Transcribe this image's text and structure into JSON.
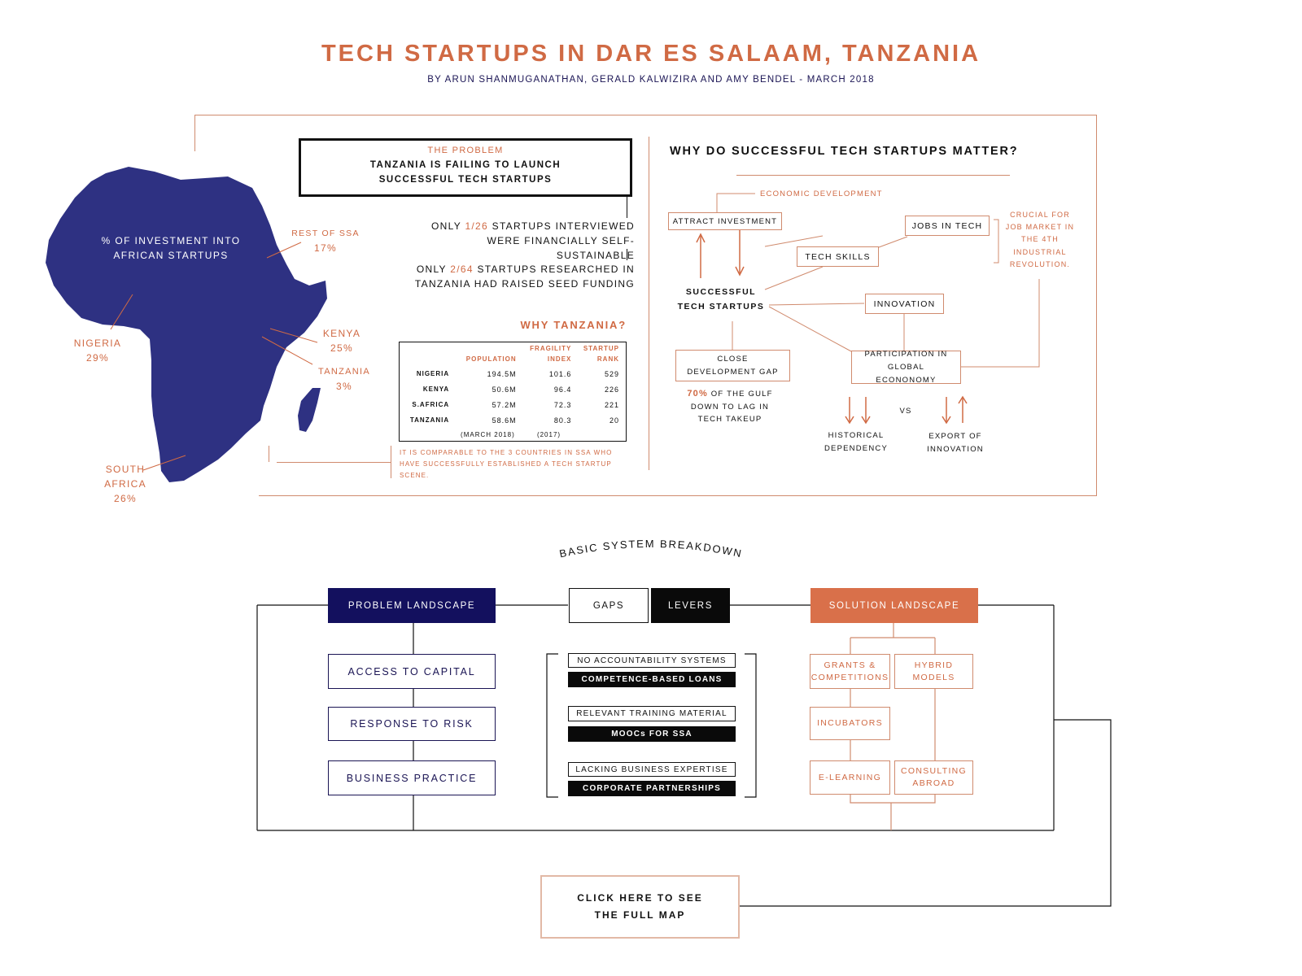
{
  "title": "TECH STARTUPS IN DAR ES SALAAM, TANZANIA",
  "subtitle": "BY ARUN SHANMUGANATHAN, GERALD KALWIZIRA AND AMY BENDEL - MARCH 2018",
  "map": {
    "center_label": "% OF INVESTMENT INTO AFRICAN STARTUPS",
    "labels": [
      {
        "name": "REST OF SSA",
        "value": "17%"
      },
      {
        "name": "NIGERIA",
        "value": "29%"
      },
      {
        "name": "KENYA",
        "value": "25%"
      },
      {
        "name": "TANZANIA",
        "value": "3%"
      },
      {
        "name": "SOUTH AFRICA",
        "value": "26%"
      }
    ],
    "colors": {
      "land": "#2e3182",
      "accent": "#d06a44"
    }
  },
  "problem": {
    "heading": "THE PROBLEM",
    "statement": "TANZANIA IS FAILING TO LAUNCH SUCCESSFUL TECH STARTUPS",
    "stat1_pre": "ONLY ",
    "stat1_hl": "1/26",
    "stat1_post": " STARTUPS INTERVIEWED WERE FINANCIALLY SELF-SUSTAINABLE",
    "stat2_pre": "ONLY ",
    "stat2_hl": "2/64",
    "stat2_post": " STARTUPS RESEARCHED IN TANZANIA HAD RAISED SEED FUNDING"
  },
  "why_tanzania": {
    "heading": "WHY TANZANIA?",
    "columns": [
      "POPULATION",
      "FRAGILITY INDEX",
      "STARTUP RANK"
    ],
    "rows": [
      {
        "country": "NIGERIA",
        "population": "194.5M",
        "fragility": "101.6",
        "rank": "529"
      },
      {
        "country": "KENYA",
        "population": "50.6M",
        "fragility": "96.4",
        "rank": "226"
      },
      {
        "country": "S.AFRICA",
        "population": "57.2M",
        "fragility": "72.3",
        "rank": "221"
      },
      {
        "country": "TANZANIA",
        "population": "58.6M",
        "fragility": "80.3",
        "rank": "20"
      }
    ],
    "notes": {
      "population": "(MARCH 2018)",
      "fragility": "(2017)"
    },
    "footnote": "IT IS COMPARABLE TO THE 3 COUNTRIES IN SSA WHO HAVE SUCCESSFULLY ESTABLISHED A TECH STARTUP SCENE."
  },
  "why_matter": {
    "heading": "WHY DO SUCCESSFUL TECH STARTUPS MATTER?",
    "economic_development": "ECONOMIC DEVELOPMENT",
    "attract_investment": "ATTRACT INVESTMENT",
    "jobs_in_tech": "JOBS IN TECH",
    "tech_skills": "TECH SKILLS",
    "crucial": "CRUCIAL FOR JOB MARKET IN THE 4TH INDUSTRIAL REVOLUTION.",
    "successful": "SUCCESSFUL TECH STARTUPS",
    "innovation": "INNOVATION",
    "close_gap": "CLOSE DEVELOPMENT GAP",
    "participation": "PARTICIPATION IN GLOBAL ECONONOMY",
    "gulf_hl": "70%",
    "gulf_text": " OF THE GULF DOWN TO LAG IN TECH TAKEUP",
    "historical": "HISTORICAL DEPENDENCY",
    "vs": "VS",
    "export": "EXPORT OF INNOVATION"
  },
  "breakdown": {
    "heading": "BASIC SYSTEM BREAKDOWN",
    "problem_landscape": "PROBLEM LANDSCAPE",
    "gaps": "GAPS",
    "levers": "LEVERS",
    "solution_landscape": "SOLUTION LANDSCAPE",
    "problems": [
      "ACCESS TO CAPITAL",
      "RESPONSE TO RISK",
      "BUSINESS PRACTICE"
    ],
    "gap_items": [
      "NO ACCOUNTABILITY SYSTEMS",
      "RELEVANT TRAINING MATERIAL",
      "LACKING BUSINESS EXPERTISE"
    ],
    "lever_items": [
      "COMPETENCE-BASED LOANS",
      "MOOCs FOR SSA",
      "CORPORATE PARTNERSHIPS"
    ],
    "solutions": {
      "grants": "GRANTS & COMPETITIONS",
      "hybrid": "HYBRID MODELS",
      "incubators": "INCUBATORS",
      "elearning": "E-LEARNING",
      "consulting": "CONSULTING ABROAD"
    },
    "colors": {
      "navy": "#13105e",
      "black": "#0a0a0a",
      "orange": "#d9704a"
    }
  },
  "cta": "CLICK HERE TO SEE THE FULL MAP"
}
